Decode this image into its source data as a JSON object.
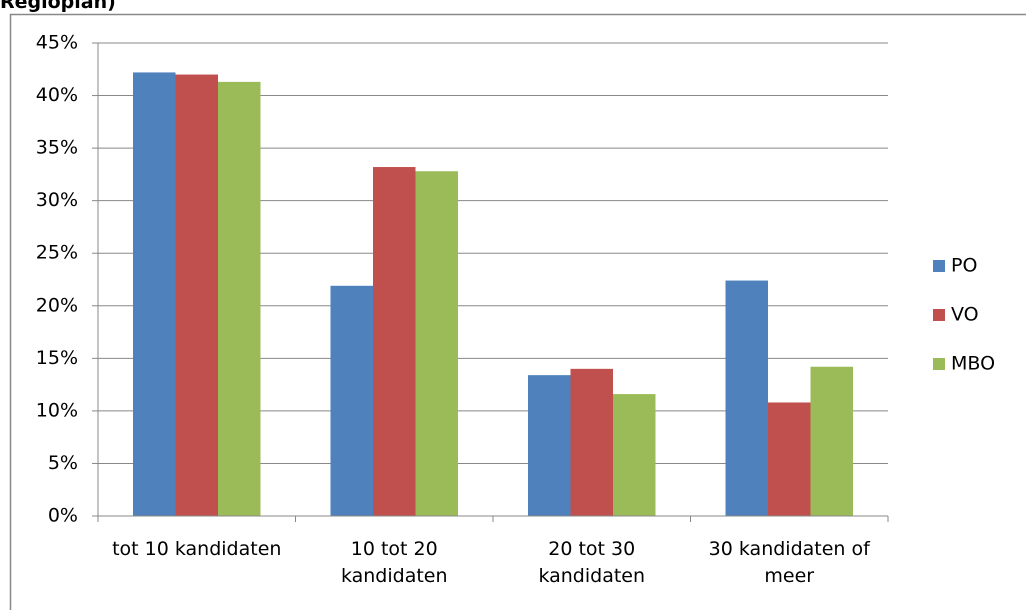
{
  "chart_data": {
    "type": "bar",
    "title": "Regioplan)",
    "categories": [
      "tot 10 kandidaten",
      "10 tot 20 kandidaten",
      "20 tot 30 kandidaten",
      "30 kandidaten of meer"
    ],
    "series": [
      {
        "name": "PO",
        "color": "#4f81bd",
        "values": [
          42.2,
          21.9,
          13.4,
          22.4
        ]
      },
      {
        "name": "VO",
        "color": "#c0504d",
        "values": [
          42.0,
          33.2,
          14.0,
          10.8
        ]
      },
      {
        "name": "MBO",
        "color": "#9bbb59",
        "values": [
          41.3,
          32.8,
          11.6,
          14.2
        ]
      }
    ],
    "ylim": [
      0,
      45
    ],
    "yticks": [
      {
        "value": 0,
        "label": "0%"
      },
      {
        "value": 5,
        "label": "5%"
      },
      {
        "value": 10,
        "label": "10%"
      },
      {
        "value": 15,
        "label": "15%"
      },
      {
        "value": 20,
        "label": "20%"
      },
      {
        "value": 25,
        "label": "25%"
      },
      {
        "value": 30,
        "label": "30%"
      },
      {
        "value": 35,
        "label": "35%"
      },
      {
        "value": 40,
        "label": "40%"
      },
      {
        "value": 45,
        "label": "45%"
      }
    ],
    "grid": true,
    "legend": "right"
  }
}
